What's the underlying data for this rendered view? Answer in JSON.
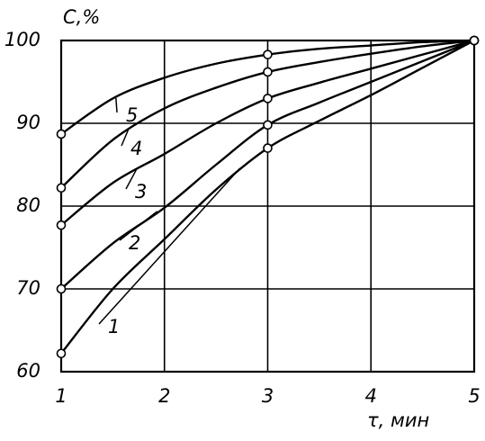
{
  "chart_data": {
    "type": "line",
    "y_label": "С,%",
    "x_label": "τ, мин",
    "x": [
      1,
      1.5,
      2,
      2.5,
      3,
      3.5,
      4,
      4.5,
      5
    ],
    "marker_x": [
      1,
      3,
      5
    ],
    "series": [
      {
        "name": "1",
        "color": "#000000",
        "values": [
          62.2,
          70,
          76,
          82,
          87,
          90.3,
          93.4,
          96.7,
          100
        ]
      },
      {
        "name": "2",
        "color": "#000000",
        "values": [
          70,
          75.5,
          79.8,
          85,
          89.8,
          92.5,
          95,
          97.5,
          100
        ]
      },
      {
        "name": "3",
        "color": "#000000",
        "values": [
          77.7,
          82.8,
          86.3,
          90,
          93,
          94.9,
          96.6,
          98.3,
          100
        ]
      },
      {
        "name": "4",
        "color": "#000000",
        "values": [
          82.2,
          88,
          91.8,
          94.3,
          96.2,
          97.4,
          98.4,
          99.3,
          100
        ]
      },
      {
        "name": "5",
        "color": "#000000",
        "values": [
          88.7,
          93,
          95.5,
          97.2,
          98.3,
          99,
          99.4,
          99.8,
          100
        ]
      }
    ],
    "xlim": [
      1,
      5
    ],
    "xticks": [
      1,
      2,
      3,
      4,
      5
    ],
    "ylim": [
      60,
      100
    ],
    "yticks": [
      60,
      70,
      80,
      90,
      100
    ],
    "grid": true
  }
}
